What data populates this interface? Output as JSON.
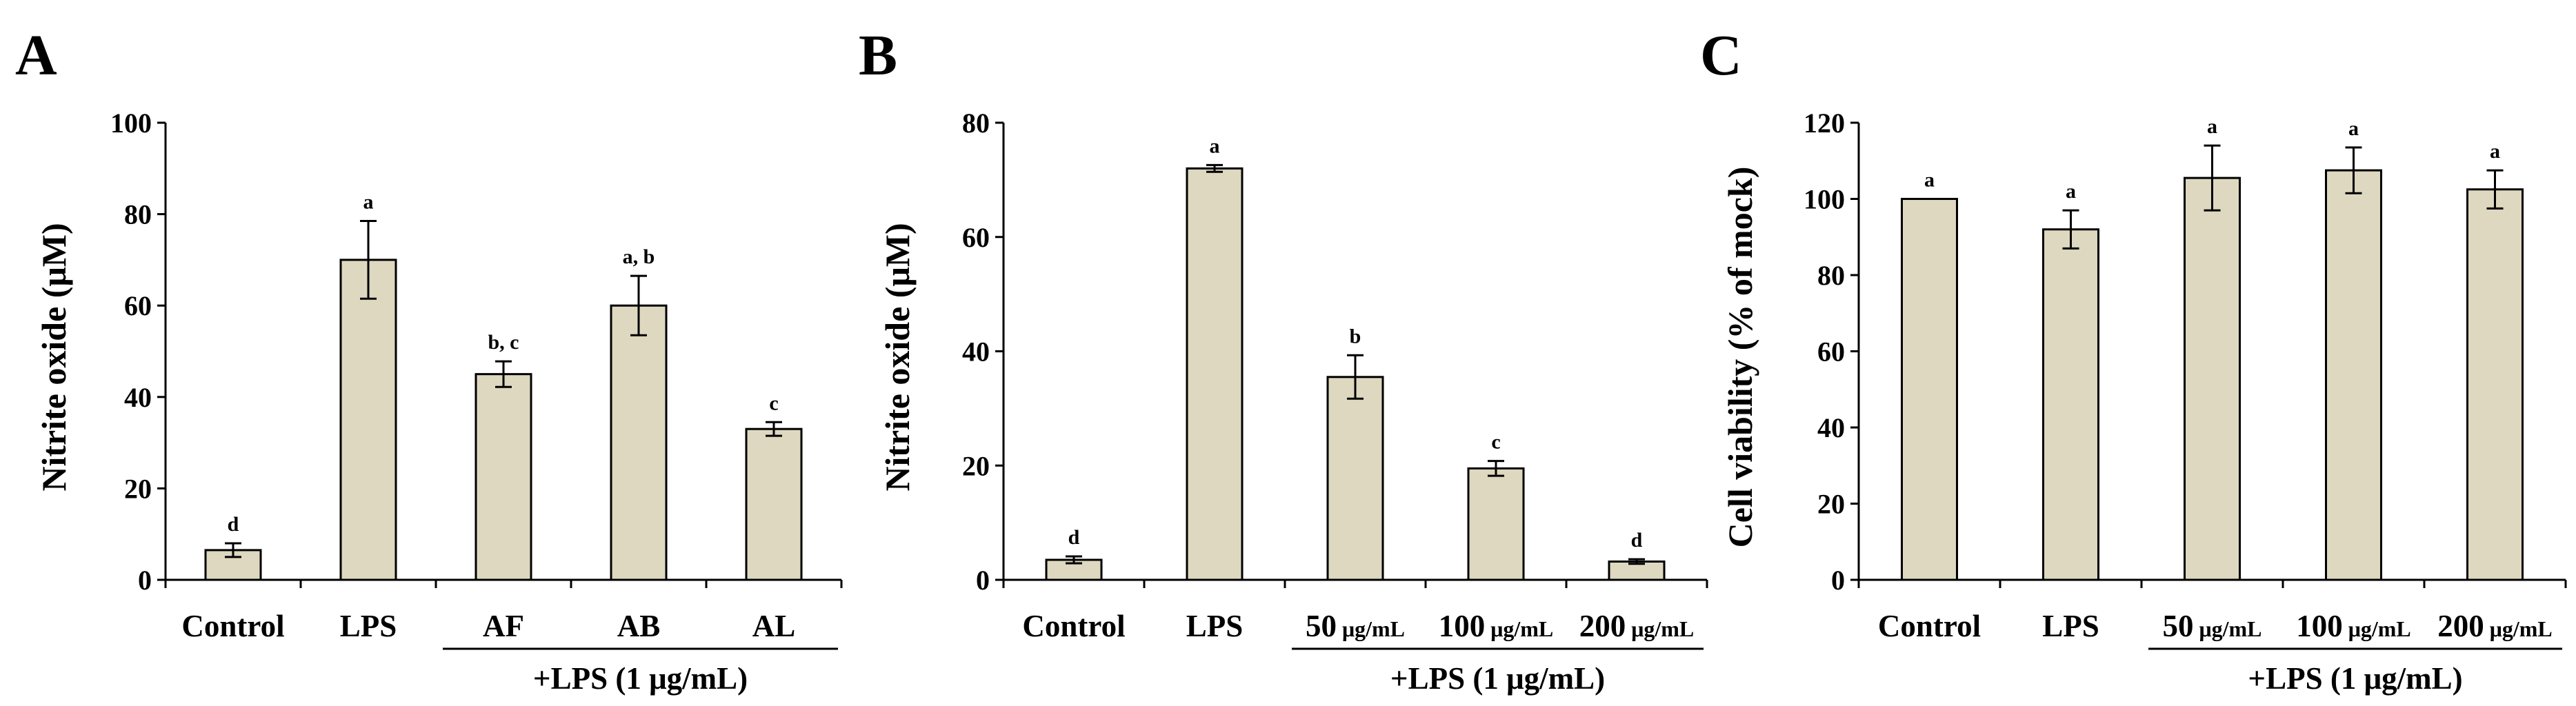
{
  "colors": {
    "bar_fill": "#ddd8bf",
    "bar_stroke": "#000000",
    "axis": "#000000"
  },
  "chart_data": [
    {
      "panel": "A",
      "type": "bar",
      "ylabel": "Nitrite oxide (μM)",
      "ylim": [
        0,
        100
      ],
      "yticks": [
        0,
        20,
        40,
        60,
        80,
        100
      ],
      "categories": [
        {
          "main": "Control",
          "unit": ""
        },
        {
          "main": "LPS",
          "unit": ""
        },
        {
          "main": "AF",
          "unit": ""
        },
        {
          "main": "AB",
          "unit": ""
        },
        {
          "main": "AL",
          "unit": ""
        }
      ],
      "values": [
        6.5,
        70,
        45,
        60,
        33
      ],
      "errors": [
        1.5,
        8.5,
        2.8,
        6.5,
        1.5
      ],
      "significance": [
        "d",
        "a",
        "b, c",
        "a, b",
        "c"
      ],
      "group_label": "+LPS (1 μg/mL)",
      "group_range": [
        2,
        4
      ]
    },
    {
      "panel": "B",
      "type": "bar",
      "ylabel": "Nitrite oxide (μM)",
      "ylim": [
        0,
        80
      ],
      "yticks": [
        0,
        20,
        40,
        60,
        80
      ],
      "categories": [
        {
          "main": "Control",
          "unit": ""
        },
        {
          "main": "LPS",
          "unit": ""
        },
        {
          "main": "50",
          "unit": "μg/mL"
        },
        {
          "main": "100",
          "unit": "μg/mL"
        },
        {
          "main": "200",
          "unit": "μg/mL"
        }
      ],
      "values": [
        3.5,
        72,
        35.5,
        19.5,
        3.2
      ],
      "errors": [
        0.6,
        0.6,
        3.8,
        1.3,
        0.4
      ],
      "significance": [
        "d",
        "a",
        "b",
        "c",
        "d"
      ],
      "group_label": "+LPS (1 μg/mL)",
      "group_range": [
        2,
        4
      ]
    },
    {
      "panel": "C",
      "type": "bar",
      "ylabel": "Cell viability (% of mock)",
      "ylim": [
        0,
        120
      ],
      "yticks": [
        0,
        20,
        40,
        60,
        80,
        100,
        120
      ],
      "categories": [
        {
          "main": "Control",
          "unit": ""
        },
        {
          "main": "LPS",
          "unit": ""
        },
        {
          "main": "50",
          "unit": "μg/mL"
        },
        {
          "main": "100",
          "unit": "μg/mL"
        },
        {
          "main": "200",
          "unit": "μg/mL"
        }
      ],
      "values": [
        100,
        92,
        105.5,
        107.5,
        102.5
      ],
      "errors": [
        0,
        5,
        8.5,
        6,
        5
      ],
      "significance": [
        "a",
        "a",
        "a",
        "a",
        "a"
      ],
      "group_label": "+LPS (1 μg/mL)",
      "group_range": [
        2,
        4
      ]
    }
  ]
}
